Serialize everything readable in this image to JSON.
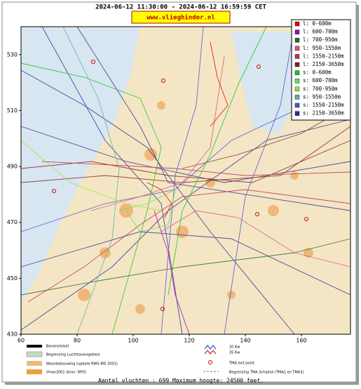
{
  "header": {
    "title": "2024-06-12 11:30:00 - 2024-06-12 16:59:59 CET",
    "site": "www.vlieghinder.nl"
  },
  "axes": {
    "xlim": [
      60,
      177.5
    ],
    "ylim": [
      430,
      540
    ],
    "xticks": [
      60,
      80,
      100,
      120,
      140,
      160
    ],
    "yticks": [
      430,
      450,
      470,
      490,
      510,
      530
    ]
  },
  "legend": [
    {
      "label": "l: 0-600m",
      "color": "#e00000"
    },
    {
      "label": "l: 600-700m",
      "color": "#a000c0"
    },
    {
      "label": "l: 700-950m",
      "color": "#2a6a2a"
    },
    {
      "label": "l: 950-1550m",
      "color": "#e05080"
    },
    {
      "label": "l: 1550-2150m",
      "color": "#c03050"
    },
    {
      "label": "l: 2150-3650m",
      "color": "#802020"
    },
    {
      "label": "s: 0-600m",
      "color": "#20c020"
    },
    {
      "label": "s: 600-700m",
      "color": "#60e060"
    },
    {
      "label": "s: 700-950m",
      "color": "#a0e040"
    },
    {
      "label": "s: 950-1550m",
      "color": "#60b0a0"
    },
    {
      "label": "s: 1550-2150m",
      "color": "#5050d0"
    },
    {
      "label": "s: 2150-3650m",
      "color": "#303090"
    }
  ],
  "map_key": {
    "runways": "Banenstelsel",
    "airport_boundary": "Begrenzing Luchthavengebied",
    "housing": "Woonbebouwing (update RWS-MD 2001)",
    "vinex": "Vinex2001 (bron: RPD)",
    "wind_20": "20 Kw",
    "wind_35": "35 Kw",
    "tma_exit": "TMA exit point",
    "tma_boundary": "Begrenzing TMA Schiphol (TMA1 en TMA3)"
  },
  "footer": "Aantal vluchten : 699 Maximum hoogte: 24500 feet."
}
